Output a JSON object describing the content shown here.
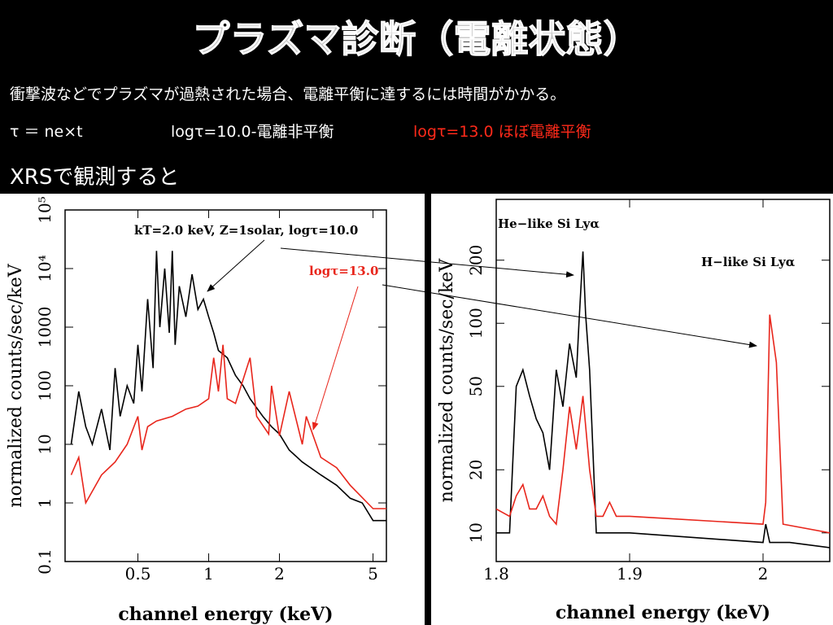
{
  "slide": {
    "title": "プラズマ診断（電離状態）",
    "line1": "衝撃波などでプラズマが過熱された場合、電離平衡に達するには時間がかかる。",
    "line2a": "τ ＝ ne×t",
    "line2b": "logτ=10.0-電離非平衡",
    "line2c": "logτ=13.0 ほぼ電離平衡",
    "line3": "XRSで観測すると"
  },
  "chart_data": [
    {
      "type": "line",
      "xscale": "log",
      "yscale": "log",
      "xlabel": "channel energy (keV)",
      "ylabel": "normalized counts/sec/keV",
      "xlim": [
        0.245,
        5.7
      ],
      "ylim": [
        0.1,
        100000
      ],
      "xticks": [
        0.5,
        1,
        2,
        5
      ],
      "yticks": [
        0.1,
        1,
        10,
        100,
        1000,
        {
          "value": 10000,
          "label": "10⁴"
        },
        {
          "value": 100000,
          "label": "10⁵"
        }
      ],
      "annotations": [
        {
          "text": "kT=2.0 keV, Z=1solar, logτ=10.0",
          "color": "#000000"
        },
        {
          "text": "logτ=13.0",
          "color": "#e8261c"
        }
      ],
      "series": [
        {
          "name": "logτ=10.0",
          "color": "#000000",
          "x": [
            0.26,
            0.28,
            0.3,
            0.32,
            0.35,
            0.38,
            0.4,
            0.42,
            0.45,
            0.48,
            0.5,
            0.52,
            0.55,
            0.58,
            0.6,
            0.62,
            0.65,
            0.68,
            0.7,
            0.72,
            0.75,
            0.8,
            0.85,
            0.9,
            0.95,
            1.0,
            1.05,
            1.1,
            1.2,
            1.3,
            1.4,
            1.5,
            1.7,
            1.85,
            2.0,
            2.2,
            2.5,
            3.0,
            3.5,
            4.0,
            4.5,
            5.0,
            5.7
          ],
          "values": [
            10,
            80,
            20,
            10,
            40,
            8,
            200,
            30,
            100,
            50,
            500,
            80,
            3000,
            200,
            20000,
            1000,
            10000,
            800,
            20000,
            500,
            5000,
            1500,
            8000,
            2000,
            3000,
            1500,
            800,
            400,
            300,
            150,
            100,
            60,
            30,
            20,
            15,
            8,
            5,
            3,
            2,
            1.2,
            1,
            0.5,
            0.5
          ]
        },
        {
          "name": "logτ=13.0",
          "color": "#e8261c",
          "x": [
            0.26,
            0.28,
            0.3,
            0.35,
            0.4,
            0.45,
            0.5,
            0.52,
            0.55,
            0.6,
            0.7,
            0.8,
            0.9,
            1.0,
            1.05,
            1.1,
            1.15,
            1.2,
            1.3,
            1.5,
            1.6,
            1.8,
            1.85,
            2.0,
            2.2,
            2.5,
            2.6,
            3.0,
            3.5,
            4,
            5,
            5.7
          ],
          "values": [
            3,
            6,
            1,
            3,
            5,
            10,
            30,
            8,
            20,
            25,
            30,
            40,
            45,
            60,
            300,
            80,
            500,
            60,
            50,
            300,
            30,
            15,
            100,
            14,
            80,
            10,
            30,
            6,
            4,
            2,
            0.8,
            0.8
          ]
        }
      ]
    },
    {
      "type": "line",
      "xscale": "linear",
      "yscale": "log",
      "xlabel": "channel energy (keV)",
      "ylabel": "normalized counts/sec/keV",
      "xlim": [
        1.8,
        2.05
      ],
      "ylim": [
        7.3,
        390
      ],
      "xticks": [
        1.8,
        1.9,
        2
      ],
      "yticks": [
        10,
        20,
        50,
        100,
        200
      ],
      "annotations": [
        {
          "text": "He−like Si Lyα",
          "color": "#000000"
        },
        {
          "text": "H−like Si Lyα",
          "color": "#000000"
        }
      ],
      "series": [
        {
          "name": "logτ=10.0",
          "color": "#000000",
          "x": [
            1.8,
            1.81,
            1.815,
            1.82,
            1.825,
            1.83,
            1.835,
            1.84,
            1.845,
            1.85,
            1.855,
            1.86,
            1.862,
            1.865,
            1.867,
            1.87,
            1.875,
            1.9,
            2.0,
            2.002,
            2.005,
            2.01,
            2.02,
            2.05
          ],
          "values": [
            10,
            10,
            50,
            60,
            45,
            35,
            30,
            20,
            60,
            40,
            80,
            55,
            100,
            220,
            110,
            60,
            10,
            10,
            9,
            11,
            9,
            9,
            9,
            8.5
          ]
        },
        {
          "name": "logτ=13.0",
          "color": "#e8261c",
          "x": [
            1.8,
            1.81,
            1.815,
            1.82,
            1.825,
            1.83,
            1.835,
            1.84,
            1.845,
            1.85,
            1.855,
            1.86,
            1.865,
            1.87,
            1.875,
            1.88,
            1.885,
            1.89,
            1.9,
            2.0,
            2.002,
            2.005,
            2.01,
            2.015,
            2.05
          ],
          "values": [
            13,
            12,
            15,
            17,
            13,
            13,
            15,
            12,
            11,
            20,
            40,
            25,
            45,
            20,
            12,
            12,
            14,
            12,
            12,
            11,
            14,
            110,
            65,
            11,
            10
          ]
        }
      ]
    }
  ]
}
